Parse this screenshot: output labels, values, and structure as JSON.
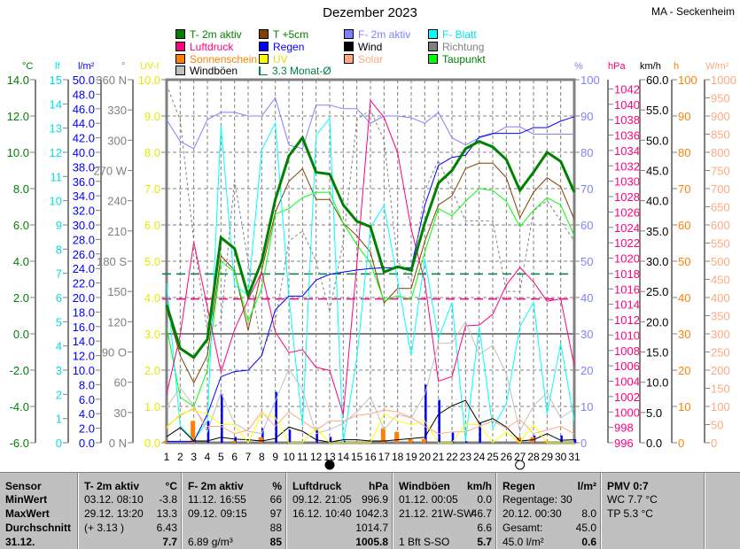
{
  "title": "Dezember 2023",
  "station": "MA - Seckenheim",
  "legend": [
    {
      "label": "T- 2m aktiv",
      "color": "#008000",
      "text": "#008000"
    },
    {
      "label": "T +5cm",
      "color": "#804000",
      "text": "#008000"
    },
    {
      "label": "F- 2m aktiv",
      "color": "#8080ff",
      "text": "#8080ff"
    },
    {
      "label": "F- Blatt",
      "color": "#00ffff",
      "text": "#00e0e0"
    },
    {
      "label": "Luftdruck",
      "color": "#ff0080",
      "text": "#ff0080"
    },
    {
      "label": "Regen",
      "color": "#0000ff",
      "text": "#0000ff"
    },
    {
      "label": "Wind",
      "color": "#000000",
      "text": "#000000"
    },
    {
      "label": "Richtung",
      "color": "#808080",
      "text": "#808080"
    },
    {
      "label": "Sonnenschein",
      "color": "#ff8000",
      "text": "#ff8000"
    },
    {
      "label": "UV",
      "color": "#ffff00",
      "text": "#e0e000"
    },
    {
      "label": "Solar",
      "color": "#ffa880",
      "text": "#ffa880"
    },
    {
      "label": "Taupunkt",
      "color": "#00ff00",
      "text": "#008000"
    },
    {
      "label": "Windböen",
      "color": "#c0c0c0",
      "text": "#000000"
    },
    {
      "label": "3.3 Monat-Ø",
      "color": "#008040",
      "text": "#008040",
      "outline": true
    }
  ],
  "chart_data": {
    "type": "line",
    "title": "Dezember 2023",
    "x": [
      1,
      2,
      3,
      4,
      5,
      6,
      7,
      8,
      9,
      10,
      11,
      12,
      13,
      14,
      15,
      16,
      17,
      18,
      19,
      20,
      21,
      22,
      23,
      24,
      25,
      26,
      27,
      28,
      29,
      30,
      31
    ],
    "xlabels": [
      "1",
      "2",
      "3",
      "4",
      "5",
      "6",
      "7",
      "8",
      "9",
      "10",
      "11",
      "12",
      "13",
      "14",
      "15",
      "16",
      "17",
      "18",
      "19",
      "20",
      "21",
      "22",
      "23",
      "24",
      "25",
      "26",
      "27",
      "28",
      "29",
      "30",
      "31"
    ],
    "grid": true,
    "axes": {
      "temp": {
        "unit": "°C",
        "color": "#008000",
        "range": [
          -6,
          14
        ],
        "ticks": [
          "14.0",
          "12.0",
          "10.0",
          "8.0",
          "6.0",
          "4.0",
          "2.0",
          "0.0",
          "-2.0",
          "-4.0",
          "-6.0"
        ]
      },
      "lf": {
        "unit": "lf",
        "color": "#00e0e0",
        "range": [
          0,
          15
        ],
        "ticks": [
          "15",
          "14",
          "13",
          "12",
          "11",
          "10",
          "9",
          "8",
          "7",
          "6",
          "5",
          "4",
          "3",
          "2",
          "1",
          "0"
        ]
      },
      "rain": {
        "unit": "l/m²",
        "color": "#0000ff",
        "range": [
          0,
          50
        ],
        "ticks": [
          "50.0",
          "48.0",
          "46.0",
          "44.0",
          "42.0",
          "40.0",
          "38.0",
          "36.0",
          "34.0",
          "32.0",
          "30.0",
          "28.0",
          "26.0",
          "24.0",
          "22.0",
          "20.0",
          "18.0",
          "16.0",
          "14.0",
          "12.0",
          "10.0",
          "8.0",
          "6.0",
          "4.0",
          "2.0",
          "0.0"
        ]
      },
      "dir": {
        "unit": "°",
        "color": "#808080",
        "range": [
          0,
          360
        ],
        "ticks": [
          "360 N",
          "330",
          "300",
          "270 W",
          "240",
          "210",
          "180 S",
          "150",
          "120",
          "90 O",
          "60",
          "30",
          "0 N"
        ]
      },
      "uv": {
        "unit": "UV-I",
        "color": "#e8e800",
        "range": [
          0,
          10
        ],
        "ticks": [
          "10.0",
          "9.0",
          "8.0",
          "7.0",
          "6.0",
          "5.0",
          "4.0",
          "3.0",
          "2.0",
          "1.0",
          "0.0"
        ]
      },
      "hum": {
        "unit": "%",
        "color": "#8080ff",
        "range": [
          0,
          100
        ],
        "ticks": [
          "100",
          "90",
          "80",
          "70",
          "60",
          "50",
          "40",
          "30",
          "20",
          "10",
          "0"
        ]
      },
      "press": {
        "unit": "hPa",
        "color": "#ff0080",
        "range": [
          996,
          1043.2
        ],
        "ticks": [
          "1042",
          "1040",
          "1038",
          "1036",
          "1034",
          "1032",
          "1030",
          "1028",
          "1026",
          "1024",
          "1022",
          "1020",
          "1018",
          "1016",
          "1014",
          "1012",
          "1010",
          "1008",
          "1006",
          "1004",
          "1002",
          "1000",
          "998",
          "996"
        ]
      },
      "wind": {
        "unit": "km/h",
        "color": "#000000",
        "range": [
          0,
          60
        ],
        "ticks": [
          "60.0",
          "55.0",
          "50.0",
          "45.0",
          "40.0",
          "35.0",
          "30.0",
          "25.0",
          "20.0",
          "15.0",
          "10.0",
          "5.0",
          "0.0"
        ]
      },
      "sun": {
        "unit": "h",
        "color": "#ff8000",
        "range": [
          0,
          100
        ],
        "ticks": [
          "100",
          "90",
          "80",
          "70",
          "60",
          "50",
          "40",
          "30",
          "20",
          "10",
          "0"
        ]
      },
      "solar": {
        "unit": "W/m²",
        "color": "#ffa880",
        "range": [
          0,
          1000
        ],
        "ticks": [
          "1000",
          "950",
          "900",
          "850",
          "800",
          "750",
          "700",
          "650",
          "600",
          "550",
          "500",
          "450",
          "400",
          "350",
          "300",
          "250",
          "200",
          "150",
          "100",
          "50",
          "0"
        ]
      }
    },
    "series": [
      {
        "name": "T- 2m aktiv",
        "axis": "temp",
        "color": "#008000",
        "width": 3,
        "values": [
          1.6,
          -0.8,
          -1.3,
          -0.3,
          5.3,
          4.7,
          2.1,
          4.0,
          7.4,
          9.8,
          10.8,
          8.9,
          8.8,
          7.1,
          6.2,
          5.9,
          3.4,
          3.7,
          3.5,
          6.1,
          8.3,
          9.0,
          10.2,
          10.6,
          10.3,
          9.6,
          7.9,
          8.9,
          10.0,
          9.5,
          7.8
        ]
      },
      {
        "name": "T +5cm",
        "axis": "temp",
        "color": "#804000",
        "width": 1,
        "values": [
          1.4,
          -1.2,
          -2.7,
          -1.2,
          4.3,
          3.5,
          0.2,
          3.5,
          6.7,
          8.4,
          9.1,
          7.4,
          7.4,
          6.1,
          5.4,
          4.5,
          1.7,
          2.5,
          2.5,
          5.1,
          7.1,
          7.6,
          9.1,
          9.4,
          9.4,
          8.6,
          6.4,
          7.8,
          8.6,
          8.1,
          6.3
        ]
      },
      {
        "name": "Taupunkt",
        "axis": "temp",
        "color": "#00ff00",
        "width": 1,
        "values": [
          0.4,
          -3.5,
          -4.0,
          -2.0,
          4.0,
          3.4,
          0.7,
          2.5,
          6.6,
          6.9,
          7.5,
          7.8,
          7.8,
          6.1,
          4.9,
          3.9,
          1.8,
          2.1,
          1.9,
          4.5,
          6.9,
          6.5,
          7.3,
          8.0,
          7.9,
          7.3,
          5.9,
          6.8,
          7.5,
          7.1,
          5.4
        ]
      },
      {
        "name": "F- 2m aktiv",
        "axis": "hum",
        "color": "#8080ff",
        "width": 1,
        "values": [
          89,
          83,
          81,
          89,
          91,
          91,
          90,
          90,
          95,
          82,
          81,
          93,
          93,
          92,
          92,
          88,
          90,
          90,
          89.5,
          88,
          91,
          84,
          82,
          84,
          85,
          87,
          87,
          85,
          85,
          85,
          85
        ]
      },
      {
        "name": "F- Blatt",
        "axis": "lf",
        "color": "#00ffff",
        "width": 1,
        "values": [
          6.6,
          0.7,
          0.1,
          0.9,
          13.1,
          6.5,
          6.1,
          12.1,
          13.2,
          6.0,
          0.7,
          12.7,
          13.4,
          0,
          3.5,
          8.9,
          9.8,
          6.7,
          3.6,
          7.6,
          4.3,
          5.8,
          0.1,
          4.8,
          0.6,
          1.6,
          4.8,
          5.8,
          1.2,
          4.1,
          0.9
        ]
      },
      {
        "name": "Luftdruck",
        "axis": "press",
        "color": "#ff0080",
        "width": 1,
        "values": [
          1002.3,
          1010,
          1022.1,
          1013.6,
          1005.2,
          1010.7,
          1014.6,
          1018.2,
          1010.4,
          1007.7,
          1008.1,
          1005.8,
          1005.4,
          999.7,
          1019.2,
          1040.5,
          1038.3,
          1033.7,
          1023.8,
          1016.9,
          1004.0,
          1004.6,
          1011.2,
          1011.3,
          1012.7,
          1016.5,
          1018.8,
          1016.9,
          1014.4,
          1014.7,
          1006.0
        ]
      },
      {
        "name": "Regen",
        "axis": "rain",
        "color": "#0000ff",
        "width": 1,
        "values": [
          0.2,
          0.2,
          0.2,
          3.9,
          9.1,
          9.8,
          10.0,
          12.0,
          18.3,
          20.2,
          20.2,
          22.4,
          23.2,
          23.5,
          23.8,
          24.0,
          24.1,
          24.1,
          24.1,
          32.7,
          38.2,
          39.3,
          39.6,
          42.1,
          42.6,
          42.6,
          42.6,
          43.4,
          43.4,
          44.3,
          44.9
        ]
      },
      {
        "name": "Richtung",
        "axis": "dir",
        "color": "#808080",
        "width": 1,
        "dash": true,
        "values": [
          355,
          320,
          200,
          110,
          120,
          260,
          180,
          90,
          120,
          200,
          210,
          180,
          130,
          200,
          320,
          330,
          300,
          180,
          160,
          250,
          280,
          250,
          220,
          220,
          220,
          150,
          150,
          230,
          240,
          220,
          200
        ]
      },
      {
        "name": "Windböen",
        "axis": "wind",
        "color": "#c0c0c0",
        "width": 1,
        "values": [
          5.9,
          9.1,
          6.1,
          1.8,
          8.3,
          3.2,
          1.9,
          1.5,
          6.9,
          12.2,
          8.8,
          1.5,
          2.2,
          3.2,
          5.1,
          7.6,
          2.2,
          4.7,
          4.1,
          8.0,
          16.4,
          16.5,
          20.0,
          14.6,
          16.1,
          11.4,
          1.9,
          6.1,
          8.3,
          4.1,
          5.6
        ]
      },
      {
        "name": "Wind",
        "axis": "wind",
        "color": "#000000",
        "width": 1,
        "values": [
          1.0,
          2.5,
          0.3,
          0.3,
          0.9,
          0.6,
          0.5,
          0.3,
          0.7,
          2.6,
          1.9,
          0.5,
          0.1,
          0.5,
          0.5,
          0.3,
          0.3,
          0.5,
          0.7,
          0.9,
          4.7,
          6.1,
          7.0,
          3.2,
          4.0,
          2.6,
          0.3,
          0.5,
          1.5,
          0.4,
          0.5
        ]
      },
      {
        "name": "Solar",
        "axis": "solar",
        "color": "#ffa880",
        "width": 1,
        "values": [
          45,
          75,
          95,
          45,
          45,
          25,
          35,
          85,
          45,
          85,
          60,
          35,
          60,
          60,
          75,
          80,
          90,
          85,
          70,
          45,
          25,
          30,
          30,
          45,
          60,
          40,
          65,
          25,
          35,
          45,
          25
        ]
      },
      {
        "name": "UV",
        "axis": "uv",
        "color": "#ffff00",
        "width": 1,
        "values": [
          0.4,
          0.8,
          0.9,
          0.8,
          0.5,
          0.5,
          0.0,
          0.8,
          0.7,
          0.0,
          0.0,
          0.4,
          0.0,
          0.0,
          0.0,
          0.0,
          0.8,
          0.6,
          0.5,
          0.6,
          0.0,
          0.0,
          0.5,
          0.5,
          0.0,
          0.3,
          0.0,
          0.5,
          0.0,
          0.0,
          0.0
        ]
      }
    ],
    "bars": [
      {
        "name": "Regen",
        "axis": "rain",
        "color": "#0000ff",
        "values": [
          0,
          0,
          0.5,
          3.0,
          6.7,
          0.8,
          0,
          2.0,
          7.0,
          1.8,
          0,
          2.0,
          0.8,
          0.3,
          0,
          0,
          0.2,
          0,
          0.2,
          8.0,
          5.9,
          1.4,
          0.2,
          2.7,
          0,
          0,
          0,
          1.0,
          0,
          1.0,
          0.5
        ]
      },
      {
        "name": "Sonnenschein",
        "axis": "sun",
        "color": "#ff8000",
        "values": [
          0.5,
          0,
          6.0,
          0,
          0,
          0.5,
          0,
          1.5,
          0,
          0,
          0,
          0,
          0,
          0,
          0,
          0,
          4.0,
          3.0,
          1.0,
          1.0,
          0,
          0,
          0,
          0,
          0,
          0,
          1.5,
          1.5,
          0.5,
          0,
          0
        ]
      }
    ],
    "reference_lines": [
      {
        "name": "3.3 Monat-Ø",
        "axis": "temp",
        "value": 3.3,
        "color": "#008040"
      },
      {
        "name": "Luftdruck Durchschnitt",
        "axis": "press",
        "value": 1014.7,
        "color": "#ff0080"
      }
    ],
    "moon_phases": [
      {
        "day": 13,
        "phase": "new-moon"
      },
      {
        "day": 27,
        "phase": "full-moon"
      }
    ]
  },
  "table": {
    "columns": [
      {
        "rows": [
          [
            "Sensor",
            ""
          ],
          [
            "MinWert",
            ""
          ],
          [
            "MaxWert",
            ""
          ],
          [
            "Durchschnitt",
            ""
          ],
          [
            "31.12.",
            ""
          ]
        ],
        "bold_all": true
      },
      {
        "rows": [
          [
            "T- 2m aktiv",
            "°C"
          ],
          [
            "03.12.  08:10",
            "-3.8"
          ],
          [
            "29.12.  13:20",
            "13.3"
          ],
          [
            "(+ 3.13 )",
            "6.43"
          ],
          [
            "",
            "7.7"
          ]
        ]
      },
      {
        "rows": [
          [
            "F- 2m aktiv",
            "%"
          ],
          [
            "11.12.  16:55",
            "66"
          ],
          [
            "09.12.  09:15",
            "97"
          ],
          [
            "",
            "88"
          ],
          [
            "6.89 g/m³",
            "85"
          ]
        ]
      },
      {
        "rows": [
          [
            "Luftdruck",
            "hPa"
          ],
          [
            "09.12.  21:05",
            "996.9"
          ],
          [
            "16.12.  10:40",
            "1042.3"
          ],
          [
            "",
            "1014.7"
          ],
          [
            "",
            "1005.8"
          ]
        ]
      },
      {
        "rows": [
          [
            "Windböen",
            "km/h"
          ],
          [
            "01.12.  00:05",
            "0.0"
          ],
          [
            "21.12.  21W-SW",
            "46.7"
          ],
          [
            "",
            "6.6"
          ],
          [
            "1 Bft S-SO",
            "5.7"
          ]
        ]
      },
      {
        "rows": [
          [
            "Regen",
            "l/m²"
          ],
          [
            "Regentage: 30",
            ""
          ],
          [
            "20.12.  00:30",
            "8.0"
          ],
          [
            "Gesamt:",
            "45.0"
          ],
          [
            "45.0 l/m²",
            "0.6"
          ]
        ]
      },
      {
        "rows": [
          [
            "PMV 0:7",
            ""
          ],
          [
            "WC 7.7 °C",
            ""
          ],
          [
            "TP 5.3 °C",
            ""
          ],
          [
            "",
            ""
          ],
          [
            "",
            ""
          ]
        ]
      },
      {
        "rows": [
          [
            "",
            ""
          ],
          [
            "",
            ""
          ],
          [
            "",
            ""
          ],
          [
            "",
            ""
          ],
          [
            "",
            ""
          ]
        ]
      }
    ]
  }
}
